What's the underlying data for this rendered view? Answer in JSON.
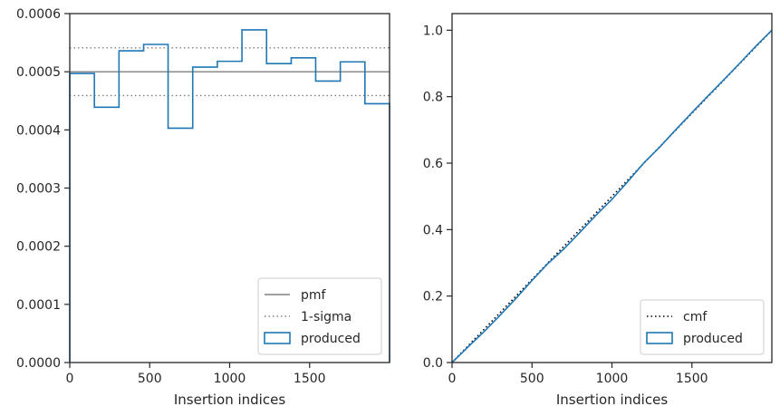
{
  "chart_data": [
    {
      "type": "histogram",
      "xlabel": "Insertion indices",
      "ylabel": "",
      "xlim": [
        0,
        2000
      ],
      "ylim": [
        0,
        0.0006
      ],
      "x_ticks": [
        "0",
        "500",
        "1000",
        "1500"
      ],
      "y_ticks": [
        "0.0000",
        "0.0001",
        "0.0002",
        "0.0003",
        "0.0004",
        "0.0005",
        "0.0006"
      ],
      "bin_edges": [
        0,
        154,
        308,
        462,
        615,
        769,
        923,
        1077,
        1231,
        1385,
        1538,
        1692,
        1846,
        2000
      ],
      "series": [
        {
          "name": "produced",
          "style": "step",
          "color": "#1f77b4",
          "values": [
            0.000497,
            0.000439,
            0.000536,
            0.000547,
            0.000403,
            0.000508,
            0.000518,
            0.000572,
            0.000514,
            0.000524,
            0.000484,
            0.000517,
            0.000445
          ]
        }
      ],
      "reference_lines": [
        {
          "name": "pmf",
          "y": 0.0005,
          "style": "solid",
          "color": "#808080"
        },
        {
          "name": "1-sigma",
          "y": 0.000541,
          "style": "dotted",
          "color": "#808080"
        },
        {
          "name": "1-sigma",
          "y": 0.000459,
          "style": "dotted",
          "color": "#808080"
        }
      ],
      "legend": {
        "placement": "lower-right",
        "entries": [
          {
            "label": "pmf",
            "marker": "solid-line",
            "color": "#808080"
          },
          {
            "label": "1-sigma",
            "marker": "dotted-line",
            "color": "#808080"
          },
          {
            "label": "produced",
            "marker": "box",
            "color": "#1f77b4"
          }
        ]
      },
      "grid": false
    },
    {
      "type": "line",
      "xlabel": "Insertion indices",
      "ylabel": "",
      "xlim": [
        0,
        2000
      ],
      "ylim": [
        0,
        1.05
      ],
      "x_ticks": [
        "0",
        "500",
        "1000",
        "1500"
      ],
      "y_ticks": [
        "0.0",
        "0.2",
        "0.4",
        "0.6",
        "0.8",
        "1.0"
      ],
      "series": [
        {
          "name": "cmf",
          "style": "dotted",
          "color": "#000000",
          "x": [
            0,
            2000
          ],
          "y": [
            0,
            1.0
          ]
        },
        {
          "name": "produced",
          "style": "solid",
          "color": "#1f77b4",
          "x": [
            0,
            100,
            200,
            300,
            400,
            500,
            600,
            700,
            800,
            900,
            1000,
            1100,
            1200,
            1300,
            1400,
            1500,
            1600,
            1700,
            1800,
            1900,
            2000
          ],
          "y": [
            0,
            0.047,
            0.093,
            0.142,
            0.193,
            0.247,
            0.298,
            0.342,
            0.392,
            0.443,
            0.491,
            0.545,
            0.601,
            0.649,
            0.701,
            0.752,
            0.802,
            0.851,
            0.901,
            0.952,
            1.0
          ]
        }
      ],
      "legend": {
        "placement": "lower-right",
        "entries": [
          {
            "label": "cmf",
            "marker": "dotted-line",
            "color": "#000000"
          },
          {
            "label": "produced",
            "marker": "box",
            "color": "#1f77b4"
          }
        ]
      },
      "grid": false
    }
  ]
}
